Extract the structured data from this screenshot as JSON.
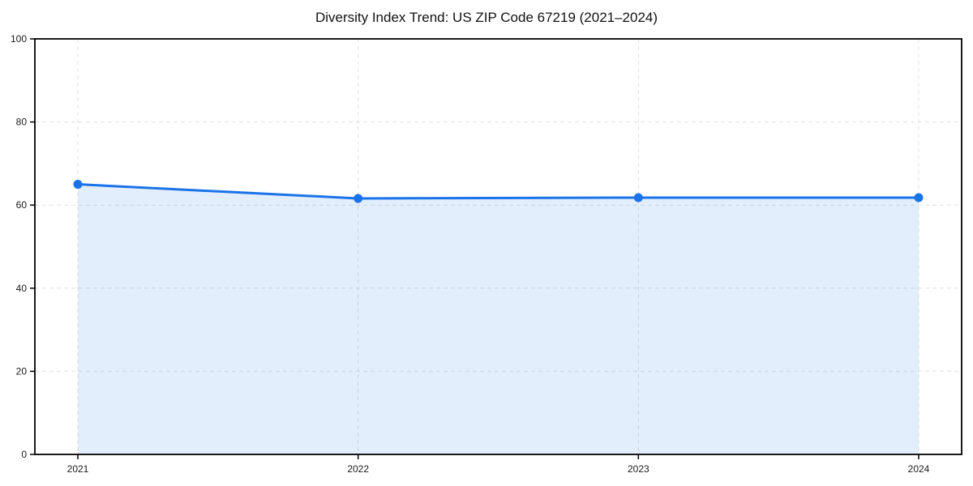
{
  "chart": {
    "title": "Diversity Index Trend: US ZIP Code 67219 (2021–2024)"
  },
  "chart_data": {
    "type": "area",
    "title": "Diversity Index Trend: US ZIP Code 67219 (2021–2024)",
    "series_name": "Diversity Index",
    "categories": [
      "2021",
      "2022",
      "2023",
      "2024"
    ],
    "values": [
      65.0,
      61.6,
      61.8,
      61.8
    ],
    "xlabel": "",
    "ylabel": "",
    "ylim": [
      0,
      100
    ],
    "yticks": [
      0,
      20,
      40,
      60,
      80,
      100
    ],
    "grid": true,
    "grid_style": "dashed",
    "legend": "none",
    "colors": {
      "line": "#1a73e8",
      "marker": "#1a73e8",
      "fill": "rgba(26,115,232,0.12)",
      "grid": "#e0e0e0",
      "axis": "#000000",
      "tick_label": "#1a1a1a",
      "title": "#111111",
      "background": "#ffffff"
    }
  }
}
